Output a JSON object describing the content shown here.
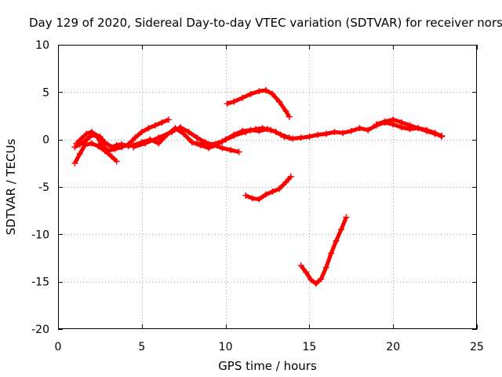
{
  "chart_data": {
    "type": "line",
    "title": "Day 129 of 2020, Sidereal Day-to-day VTEC variation (SDTVAR) for receiver nors",
    "xlabel": "GPS time / hours",
    "ylabel": "SDTVAR / TECUs",
    "xlim": [
      0,
      25
    ],
    "ylim": [
      -20,
      10
    ],
    "xticks": [
      0,
      5,
      10,
      15,
      20,
      25
    ],
    "yticks": [
      -20,
      -15,
      -10,
      -5,
      0,
      5,
      10
    ],
    "grid": true,
    "color": "#ff0000",
    "series": [
      {
        "name": "s1",
        "x": [
          1.0,
          1.3,
          1.6,
          1.9,
          2.2,
          2.5,
          2.8,
          3.2,
          3.5,
          3.8,
          4.2,
          4.5,
          5.0,
          5.5,
          6.0,
          6.5,
          7.0,
          7.5,
          8.0,
          8.5,
          9.0,
          9.5,
          10.0,
          10.5,
          11.0,
          11.5,
          12.0,
          12.5,
          13.0,
          13.5,
          14.0,
          14.5,
          15.0,
          15.5,
          16.0,
          16.5,
          17.0,
          17.5,
          18.0,
          18.5,
          19.0,
          19.5,
          20.0,
          20.5,
          21.0,
          21.5,
          22.0,
          22.5,
          22.9
        ],
        "y": [
          -0.8,
          -0.5,
          -0.2,
          0.3,
          0.5,
          0.3,
          -0.3,
          -0.8,
          -0.6,
          -0.5,
          -0.7,
          -0.6,
          -0.3,
          0.0,
          -0.4,
          0.5,
          1.2,
          0.6,
          -0.3,
          -0.6,
          -0.9,
          -0.5,
          0.0,
          0.5,
          0.9,
          1.0,
          0.9,
          1.1,
          0.8,
          0.3,
          0.1,
          0.2,
          0.3,
          0.5,
          0.6,
          0.8,
          0.7,
          0.9,
          1.2,
          1.0,
          1.5,
          1.8,
          1.6,
          1.3,
          1.1,
          1.2,
          0.9,
          0.6,
          0.4
        ]
      },
      {
        "name": "s2",
        "x": [
          1.1,
          1.4,
          1.7,
          2.0,
          2.3,
          2.6,
          3.0,
          3.4,
          3.8,
          4.2,
          4.6,
          5.0,
          5.4,
          5.8,
          6.2,
          6.6
        ],
        "y": [
          -0.4,
          0.1,
          0.6,
          0.8,
          0.4,
          -0.5,
          -1.2,
          -1.0,
          -0.8,
          -0.5,
          0.2,
          0.8,
          1.2,
          1.5,
          1.8,
          2.1
        ]
      },
      {
        "name": "s3",
        "x": [
          1.0,
          1.3,
          1.6,
          2.0,
          2.4,
          2.8,
          3.2,
          3.5
        ],
        "y": [
          -2.5,
          -1.5,
          -0.6,
          -0.4,
          -0.7,
          -1.2,
          -1.8,
          -2.3
        ]
      },
      {
        "name": "s4",
        "x": [
          4.5,
          5.2,
          6.0,
          6.8,
          7.3,
          7.8,
          8.3,
          8.8,
          9.3,
          9.8,
          10.3,
          10.8
        ],
        "y": [
          -0.8,
          -0.4,
          0.2,
          0.8,
          1.3,
          0.8,
          0.2,
          -0.3,
          -0.6,
          -0.9,
          -1.1,
          -1.3
        ]
      },
      {
        "name": "s5",
        "x": [
          8.3,
          9.0,
          9.8,
          10.5,
          11.2,
          11.8,
          12.2,
          12.7,
          13.0,
          13.3,
          13.8
        ],
        "y": [
          -0.4,
          -0.6,
          -0.2,
          0.4,
          0.8,
          1.1,
          1.2,
          1.0,
          0.8,
          0.5,
          0.2
        ]
      },
      {
        "name": "s6",
        "x": [
          19.0,
          19.5,
          20.0,
          20.5,
          21.0,
          21.5,
          22.0,
          22.5,
          22.9
        ],
        "y": [
          1.6,
          1.9,
          2.1,
          1.8,
          1.5,
          1.2,
          1.0,
          0.7,
          0.3
        ]
      },
      {
        "name": "s7",
        "x": [
          10.1,
          10.5,
          11.0,
          11.5,
          12.0,
          12.4,
          12.8,
          13.2,
          13.6,
          13.8
        ],
        "y": [
          3.8,
          4.0,
          4.4,
          4.8,
          5.1,
          5.2,
          4.8,
          4.0,
          3.0,
          2.4
        ]
      },
      {
        "name": "s8",
        "x": [
          11.2,
          11.6,
          12.0,
          12.4,
          12.8,
          13.2,
          13.6,
          13.9
        ],
        "y": [
          -5.9,
          -6.2,
          -6.3,
          -5.8,
          -5.5,
          -5.2,
          -4.5,
          -3.9
        ]
      },
      {
        "name": "s9",
        "x": [
          14.5,
          14.8,
          15.1,
          15.4,
          15.7,
          16.0,
          16.3,
          16.6,
          16.9,
          17.2
        ],
        "y": [
          -13.3,
          -14.0,
          -14.8,
          -15.2,
          -14.7,
          -13.5,
          -12.0,
          -10.7,
          -9.5,
          -8.2
        ]
      }
    ]
  }
}
